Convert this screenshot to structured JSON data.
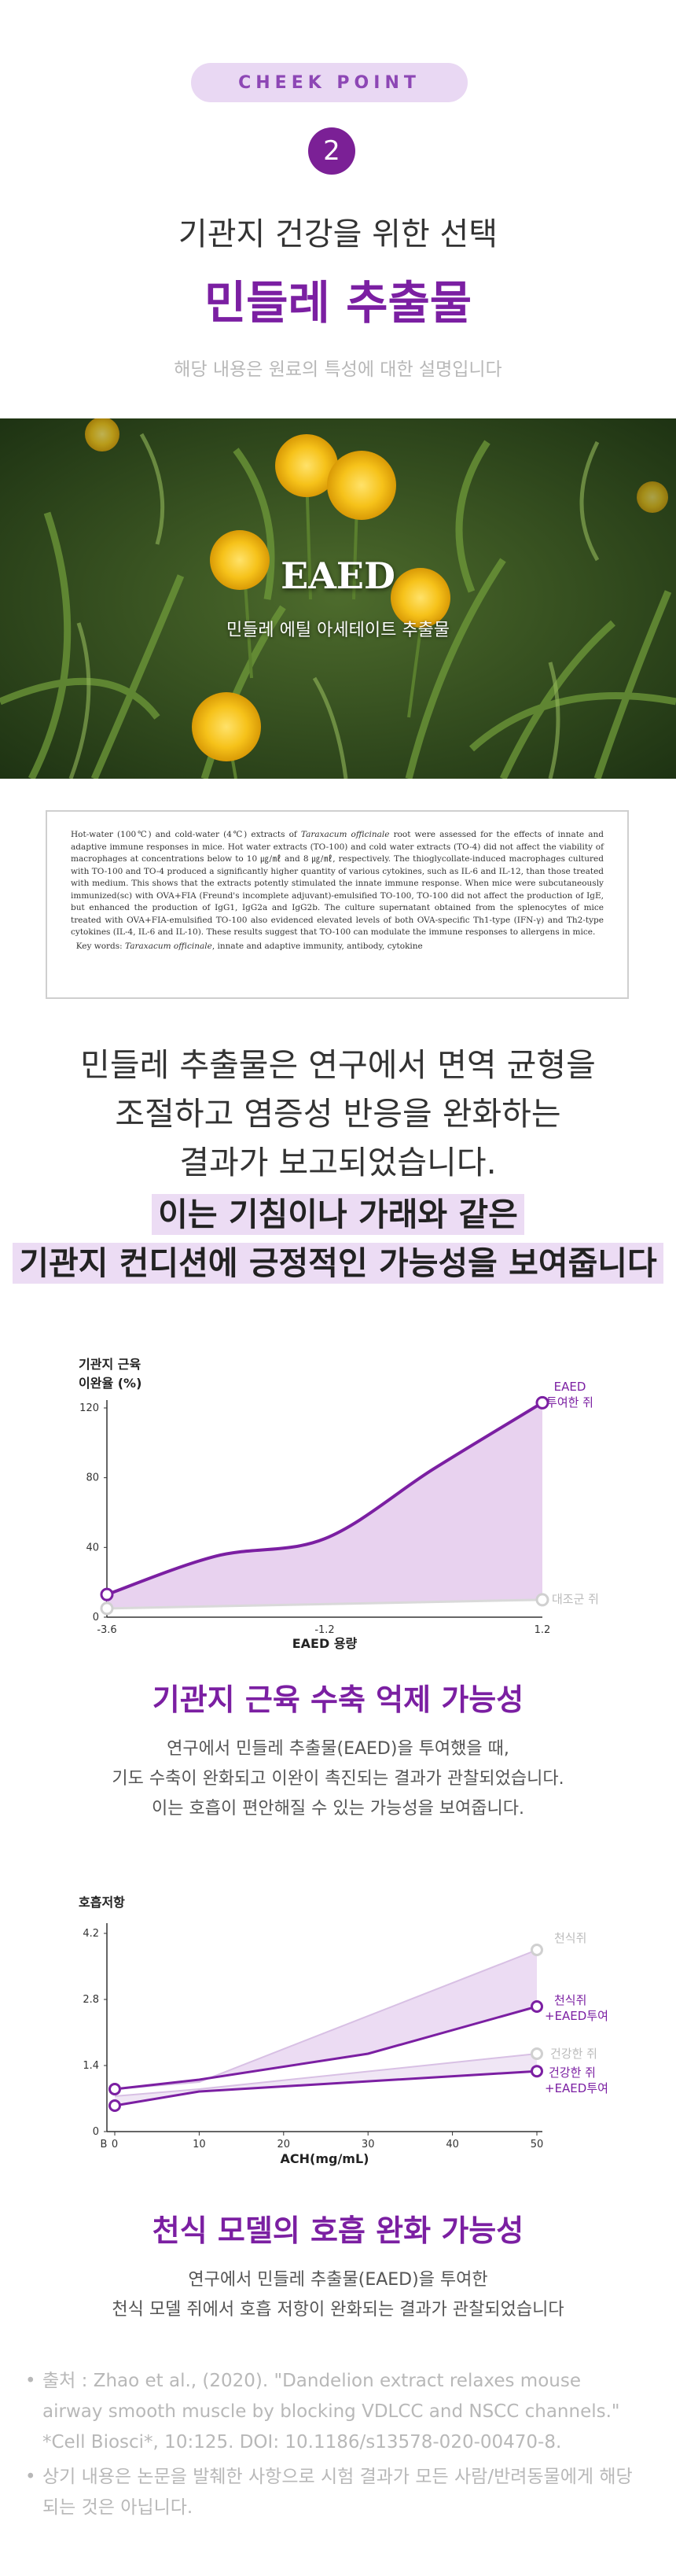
{
  "header": {
    "pill": "CHEEK POINT",
    "number": "2",
    "subtitle": "기관지 건강을 위한 선택",
    "title": "민들레 추출물",
    "note": "해당 내용은 원료의 특성에 대한 설명입니다"
  },
  "photo": {
    "label": "EAED",
    "caption": "민들레 에틸 아세테이트 추출물"
  },
  "abstract": {
    "text_a": "Hot-water (100℃) and cold-water (4℃) extracts of ",
    "species": "Taraxacum officinale",
    "text_b": " root were assessed for the effects of innate and adaptive immune responses in mice. Hot water extracts (TO-100) and cold water extracts (TO-4) did not affect the viability of macrophages at concentrations below to 10 ㎍/㎖ and 8 ㎍/㎖, respectively. The thioglycollate-induced macrophages cultured with TO-100 and TO-4 produced a significantly higher quantity of various cytokines, such as IL-6 and IL-12, than those treated with medium. This shows that the extracts potently stimulated the innate immune response. When mice were subcutaneously immunized(sc) with OVA+FIA (Freund's incomplete adjuvant)-emulsified TO-100, TO-100 did not affect the production of IgE, but enhanced the production of IgG1, IgG2a and IgG2b. The culture supernatant obtained from the splenocytes of mice treated with OVA+FIA-emulsified TO-100 also evidenced elevated levels of both OVA-specific Th1-type (IFN-γ) and Th2-type cytokines (IL-4, IL-6 and IL-10). These results suggest that TO-100 can modulate the immune responses to allergens in mice.",
    "keywords_label": "Key words: ",
    "keywords_species": "Taraxacum officinale",
    "keywords_rest": ", innate and adaptive immunity, antibody, cytokine"
  },
  "lead": {
    "line1": "민들레 추출물은 연구에서 면역 균형을",
    "line2": "조절하고 염증성 반응을 완화하는",
    "line3": "결과가 보고되었습니다.",
    "highlight1": "이는 기침이나 가래와 같은",
    "highlight2": "기관지 컨디션에 긍정적인 가능성을 보여줍니다"
  },
  "colors": {
    "accent": "#7b1fa2",
    "pill_bg": "#e9d8f3",
    "fill": "#e8d2ef",
    "control": "#c8c8c8"
  },
  "chart1": {
    "ylabel1": "기관지 근육",
    "ylabel2": "이완율 (%)",
    "xlabel": "EAED 용량",
    "yticks": [
      "120",
      "80",
      "40",
      "0"
    ],
    "xticks": [
      "-3.6",
      "-1.2",
      "1.2"
    ],
    "series_label_1a": "EAED",
    "series_label_1b": "투여한 쥐",
    "series_label_2": "대조군 쥐"
  },
  "chart2": {
    "ylabel": "호흡저항",
    "xlabel": "ACH(mg/mL)",
    "yticks": [
      "4.2",
      "2.8",
      "1.4",
      "0"
    ],
    "xticks": [
      "B",
      "0",
      "10",
      "20",
      "30",
      "40",
      "50"
    ],
    "label_asthma": "천식쥐",
    "label_asthma_eaed_1": "천식쥐",
    "label_asthma_eaed_2": "+EAED투여",
    "label_healthy": "건강한 쥐",
    "label_healthy_eaed_1": "건강한 쥐",
    "label_healthy_eaed_2": "+EAED투여"
  },
  "chart_data": [
    {
      "type": "area",
      "xlabel": "EAED 용량",
      "ylabel": "기관지 근육 이완율 (%)",
      "xtick_labels": [
        "-3.6",
        "-1.2",
        "1.2"
      ],
      "ylim": [
        0,
        120
      ],
      "series": [
        {
          "name": "EAED 투여한 쥐",
          "x": [
            -3.6,
            -2.4,
            -1.2,
            0,
            1.2
          ],
          "values": [
            13,
            35,
            45,
            85,
            123
          ]
        },
        {
          "name": "대조군 쥐",
          "x": [
            -3.6,
            1.2
          ],
          "values": [
            5,
            10
          ]
        }
      ]
    },
    {
      "type": "line",
      "xlabel": "ACH(mg/mL)",
      "ylabel": "호흡저항",
      "xtick_labels": [
        "B",
        "0",
        "10",
        "20",
        "30",
        "40",
        "50"
      ],
      "ylim": [
        0,
        4.2
      ],
      "series": [
        {
          "name": "천식쥐",
          "x": [
            0,
            10,
            50
          ],
          "values": [
            0.9,
            1.05,
            3.85
          ]
        },
        {
          "name": "천식쥐 +EAED투여",
          "x": [
            0,
            10,
            30,
            50
          ],
          "values": [
            0.9,
            1.1,
            1.65,
            2.65
          ]
        },
        {
          "name": "건강한 쥐",
          "x": [
            0,
            10,
            50
          ],
          "values": [
            0.75,
            0.9,
            1.65
          ]
        },
        {
          "name": "건강한 쥐 +EAED투여",
          "x": [
            0,
            10,
            50
          ],
          "values": [
            0.55,
            0.85,
            1.28
          ]
        }
      ]
    }
  ],
  "section1": {
    "title": "기관지 근육 수축 억제 가능성",
    "line1": "연구에서 민들레 추출물(EAED)을 투여했을 때,",
    "line2": "기도 수축이 완화되고 이완이 촉진되는 결과가 관찰되었습니다.",
    "line3": "이는 호흡이 편안해질 수 있는 가능성을 보여줍니다."
  },
  "section2": {
    "title": "천식 모델의 호흡 완화 가능성",
    "line1": "연구에서 민들레 추출물(EAED)을 투여한",
    "line2": "천식 모델 쥐에서 호흡 저항이 완화되는 결과가 관찰되었습니다"
  },
  "sources": {
    "bullet": "•",
    "source_text": "출처 : Zhao et al., (2020). \"Dandelion extract relaxes mouse airway smooth muscle by blocking VDLCC and NSCC channels.\" *Cell Biosci*, 10:125. DOI: 10.1186/s13578-020-00470-8.",
    "disclaimer": "상기 내용은 논문을 발췌한 사항으로 시험 결과가 모든 사람/반려동물에게 해당되는 것은 아닙니다."
  }
}
